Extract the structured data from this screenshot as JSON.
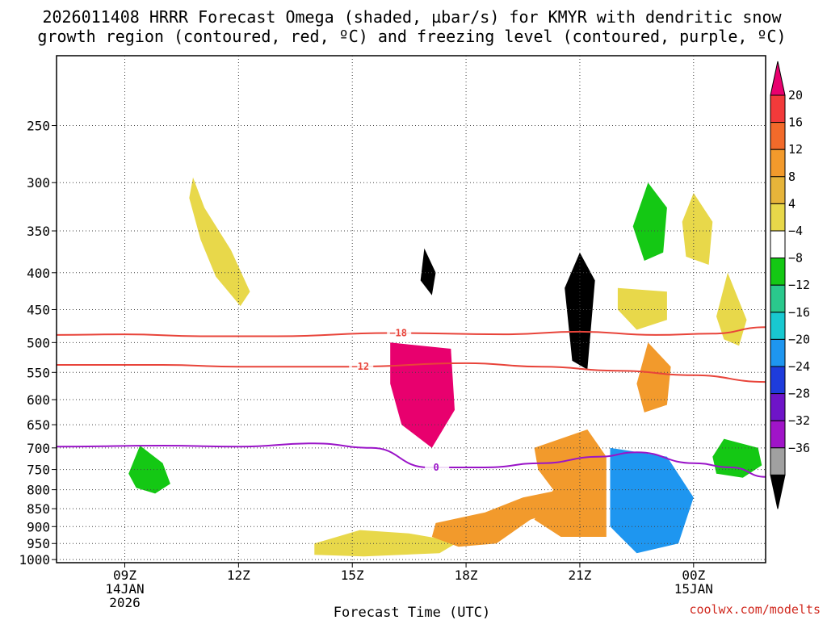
{
  "chart_data": {
    "type": "contour",
    "title_line1": "2026011408 HRRR Forecast Omega (shaded, µbar/s) for KMYR with dendritic snow",
    "title_line2": "growth region (contoured, red, ºC) and freezing level (contoured, purple, ºC)",
    "xlabel": "Forecast Time (UTC)",
    "credit": "coolwx.com/modelts",
    "x_range_hours": [
      7.2,
      25.9
    ],
    "y_pressure_levels": [
      250,
      300,
      350,
      400,
      450,
      500,
      550,
      600,
      650,
      700,
      750,
      800,
      850,
      900,
      950,
      1000
    ],
    "x_ticks": [
      {
        "hour": 9,
        "label": "09Z",
        "date": "14JAN",
        "year": "2026"
      },
      {
        "hour": 12,
        "label": "12Z"
      },
      {
        "hour": 15,
        "label": "15Z"
      },
      {
        "hour": 18,
        "label": "18Z"
      },
      {
        "hour": 21,
        "label": "21Z"
      },
      {
        "hour": 24,
        "label": "00Z",
        "date": "15JAN"
      }
    ],
    "colorbar": {
      "labels": [
        "20",
        "16",
        "12",
        "8",
        "4",
        "−4",
        "−8",
        "−12",
        "−16",
        "−20",
        "−24",
        "−28",
        "−32",
        "−36"
      ],
      "colors": [
        "#e8006e",
        "#f23a3a",
        "#f26a2a",
        "#f29a2c",
        "#e6b43a",
        "#e8d84a",
        "#ffffff",
        "#14c814",
        "#2ac88c",
        "#18c8d0",
        "#1e96f0",
        "#1e3cdc",
        "#6e14c8",
        "#a014c8",
        "#a0a0a0",
        "#000000"
      ]
    },
    "contours": [
      {
        "name": "-18",
        "color": "#e8443a",
        "label": "−18",
        "points": [
          [
            7.2,
            488
          ],
          [
            9,
            487
          ],
          [
            11,
            490
          ],
          [
            13,
            490
          ],
          [
            16,
            485
          ],
          [
            19,
            487
          ],
          [
            21,
            483
          ],
          [
            23,
            488
          ],
          [
            24.5,
            486
          ],
          [
            25.9,
            476
          ]
        ]
      },
      {
        "name": "-12",
        "color": "#e8443a",
        "label": "−12",
        "points": [
          [
            7.2,
            537
          ],
          [
            10,
            537
          ],
          [
            12,
            540
          ],
          [
            15,
            540
          ],
          [
            18,
            534
          ],
          [
            20,
            540
          ],
          [
            22,
            547
          ],
          [
            24,
            555
          ],
          [
            25.9,
            567
          ]
        ]
      },
      {
        "name": "freezing-level-0",
        "color": "#9a14c8",
        "label": "0",
        "points": [
          [
            7.2,
            697
          ],
          [
            10,
            695
          ],
          [
            12,
            697
          ],
          [
            14,
            690
          ],
          [
            15.5,
            700
          ],
          [
            17,
            745
          ],
          [
            18.5,
            745
          ],
          [
            20,
            735
          ],
          [
            21.5,
            720
          ],
          [
            22.5,
            710
          ],
          [
            24,
            735
          ],
          [
            25,
            745
          ],
          [
            25.9,
            768
          ]
        ]
      }
    ],
    "shaded_regions": [
      {
        "name": "up-pos-early-1",
        "value": 4,
        "points": [
          [
            10.8,
            295
          ],
          [
            11.1,
            325
          ],
          [
            11.8,
            372
          ],
          [
            12.3,
            425
          ],
          [
            12.05,
            445
          ],
          [
            11.4,
            405
          ],
          [
            11.0,
            360
          ],
          [
            10.7,
            315
          ]
        ]
      },
      {
        "name": "down-neg-early-1",
        "value": -4,
        "points": [
          [
            9.4,
            695
          ],
          [
            10.0,
            735
          ],
          [
            10.2,
            785
          ],
          [
            9.8,
            810
          ],
          [
            9.3,
            795
          ],
          [
            9.1,
            760
          ]
        ]
      },
      {
        "name": "down-neg-right-1",
        "value": -4,
        "points": [
          [
            24.8,
            680
          ],
          [
            25.7,
            700
          ],
          [
            25.8,
            740
          ],
          [
            25.3,
            770
          ],
          [
            24.6,
            760
          ],
          [
            24.5,
            720
          ]
        ]
      },
      {
        "name": "up-pos-right-1",
        "value": 4,
        "points": [
          [
            24.9,
            400
          ],
          [
            25.4,
            465
          ],
          [
            25.2,
            505
          ],
          [
            24.8,
            495
          ],
          [
            24.6,
            460
          ]
        ]
      },
      {
        "name": "up-pos-right-2",
        "value": 4,
        "points": [
          [
            24.0,
            310
          ],
          [
            24.5,
            340
          ],
          [
            24.4,
            390
          ],
          [
            23.8,
            380
          ],
          [
            23.7,
            340
          ]
        ]
      },
      {
        "name": "down-neg-right-2",
        "value": -4,
        "points": [
          [
            22.8,
            300
          ],
          [
            23.3,
            325
          ],
          [
            23.2,
            375
          ],
          [
            22.7,
            385
          ],
          [
            22.4,
            345
          ]
        ]
      },
      {
        "name": "up-pos-right-3",
        "value": 4,
        "points": [
          [
            22.0,
            420
          ],
          [
            23.3,
            425
          ],
          [
            23.3,
            465
          ],
          [
            22.5,
            480
          ],
          [
            22.0,
            450
          ]
        ]
      },
      {
        "name": "up-pos-right-4",
        "value": 8,
        "points": [
          [
            22.8,
            500
          ],
          [
            23.4,
            540
          ],
          [
            23.3,
            610
          ],
          [
            22.7,
            625
          ],
          [
            22.5,
            570
          ]
        ]
      },
      {
        "name": "up-pos-low-1",
        "value": 4,
        "points": [
          [
            14.0,
            950
          ],
          [
            15.2,
            910
          ],
          [
            16.5,
            920
          ],
          [
            17.8,
            945
          ],
          [
            17.3,
            980
          ],
          [
            15.3,
            990
          ],
          [
            14.0,
            985
          ]
        ]
      },
      {
        "name": "up-pos-low-2",
        "value": 8,
        "points": [
          [
            17.2,
            890
          ],
          [
            18.5,
            860
          ],
          [
            19.5,
            820
          ],
          [
            20.5,
            800
          ],
          [
            20.6,
            850
          ],
          [
            19.7,
            880
          ],
          [
            18.8,
            950
          ],
          [
            17.8,
            960
          ],
          [
            17.1,
            930
          ]
        ]
      },
      {
        "name": "up-pos-low-3",
        "value": 8,
        "points": [
          [
            19.8,
            700
          ],
          [
            21.2,
            660
          ],
          [
            21.7,
            720
          ],
          [
            21.7,
            930
          ],
          [
            20.5,
            930
          ],
          [
            19.8,
            880
          ],
          [
            20.3,
            800
          ],
          [
            19.9,
            750
          ]
        ]
      },
      {
        "name": "down-neg-low-1",
        "value": -16,
        "points": [
          [
            21.8,
            700
          ],
          [
            23.3,
            720
          ],
          [
            24.0,
            820
          ],
          [
            23.6,
            950
          ],
          [
            22.5,
            980
          ],
          [
            21.8,
            900
          ]
        ]
      },
      {
        "name": "down-neg-upper-1",
        "value": -36,
        "points": [
          [
            16.9,
            370
          ],
          [
            17.2,
            400
          ],
          [
            17.1,
            430
          ],
          [
            16.8,
            410
          ]
        ]
      },
      {
        "name": "down-neg-upper-2",
        "value": -36,
        "points": [
          [
            21.0,
            375
          ],
          [
            21.4,
            410
          ],
          [
            21.2,
            545
          ],
          [
            20.8,
            530
          ],
          [
            20.6,
            420
          ]
        ]
      },
      {
        "name": "up-pos-mid-1",
        "value": 20,
        "points": [
          [
            16.0,
            500
          ],
          [
            17.6,
            510
          ],
          [
            17.7,
            620
          ],
          [
            17.1,
            700
          ],
          [
            16.3,
            650
          ],
          [
            16.0,
            570
          ]
        ]
      }
    ]
  }
}
